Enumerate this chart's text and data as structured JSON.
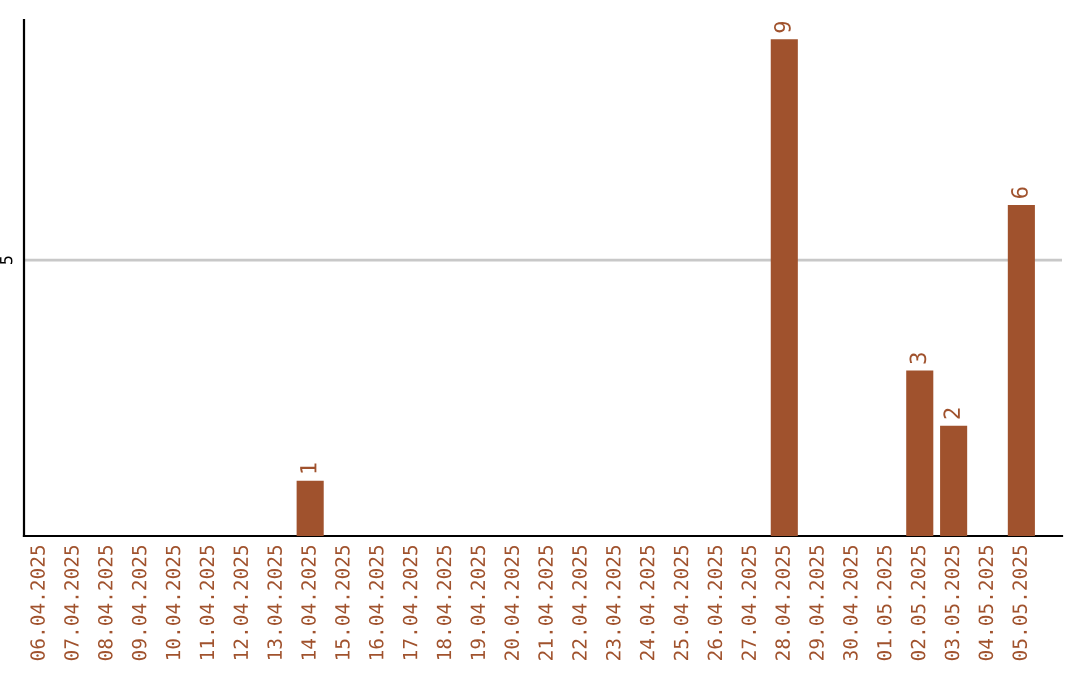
{
  "chart_data": {
    "type": "bar",
    "categories": [
      "06.04.2025",
      "07.04.2025",
      "08.04.2025",
      "09.04.2025",
      "10.04.2025",
      "11.04.2025",
      "12.04.2025",
      "13.04.2025",
      "14.04.2025",
      "15.04.2025",
      "16.04.2025",
      "17.04.2025",
      "18.04.2025",
      "19.04.2025",
      "20.04.2025",
      "21.04.2025",
      "22.04.2025",
      "23.04.2025",
      "24.04.2025",
      "25.04.2025",
      "26.04.2025",
      "27.04.2025",
      "28.04.2025",
      "29.04.2025",
      "30.04.2025",
      "01.05.2025",
      "02.05.2025",
      "03.05.2025",
      "04.05.2025",
      "05.05.2025"
    ],
    "values": [
      0,
      0,
      0,
      0,
      0,
      0,
      0,
      0,
      1,
      0,
      0,
      0,
      0,
      0,
      0,
      0,
      0,
      0,
      0,
      0,
      0,
      0,
      9,
      0,
      0,
      0,
      3,
      2,
      0,
      6
    ],
    "value_labels": [
      null,
      null,
      null,
      null,
      null,
      null,
      null,
      null,
      "1",
      null,
      null,
      null,
      null,
      null,
      null,
      null,
      null,
      null,
      null,
      null,
      null,
      null,
      "9",
      null,
      null,
      null,
      "3",
      "2",
      null,
      "6"
    ],
    "color": "#a0522d",
    "ylim": [
      0,
      9.35
    ],
    "yticks": [
      5
    ],
    "grid": "y",
    "legend": false
  }
}
